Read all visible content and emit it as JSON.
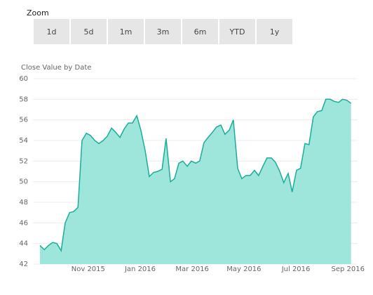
{
  "zoom": {
    "label": "Zoom",
    "buttons": [
      "1d",
      "5d",
      "1m",
      "3m",
      "6m",
      "YTD",
      "1y"
    ]
  },
  "chart_data": {
    "type": "area",
    "title": "Close Value by Date",
    "x": [
      2015.678,
      2015.692,
      2015.705,
      2015.719,
      2015.732,
      2015.746,
      2015.759,
      2015.773,
      2015.786,
      2015.8,
      2015.813,
      2015.827,
      2015.84,
      2015.854,
      2015.867,
      2015.881,
      2015.894,
      2015.908,
      2015.921,
      2015.935,
      2015.948,
      2015.962,
      2015.975,
      2015.989,
      2016.002,
      2016.016,
      2016.029,
      2016.043,
      2016.056,
      2016.07,
      2016.083,
      2016.097,
      2016.11,
      2016.124,
      2016.137,
      2016.151,
      2016.164,
      2016.178,
      2016.191,
      2016.205,
      2016.218,
      2016.232,
      2016.245,
      2016.259,
      2016.272,
      2016.286,
      2016.299,
      2016.313,
      2016.326,
      2016.34,
      2016.353,
      2016.367,
      2016.38,
      2016.394,
      2016.407,
      2016.421,
      2016.434,
      2016.448,
      2016.461,
      2016.475,
      2016.488,
      2016.502,
      2016.515,
      2016.529,
      2016.542,
      2016.556,
      2016.569,
      2016.583,
      2016.596,
      2016.61,
      2016.623,
      2016.637,
      2016.65,
      2016.664,
      2016.677
    ],
    "values": [
      43.8,
      43.4,
      43.8,
      44.1,
      44.0,
      43.3,
      46.0,
      47.0,
      47.1,
      47.5,
      54.0,
      54.7,
      54.5,
      54.0,
      53.7,
      54.0,
      54.4,
      55.2,
      54.8,
      54.3,
      55.1,
      55.7,
      55.7,
      56.4,
      55.0,
      53.0,
      50.5,
      50.9,
      51.0,
      51.2,
      54.2,
      50.0,
      50.3,
      51.8,
      52.0,
      51.5,
      52.0,
      51.8,
      52.0,
      53.8,
      54.3,
      54.8,
      55.3,
      55.5,
      54.6,
      55.0,
      56.0,
      51.3,
      50.3,
      50.6,
      50.6,
      51.1,
      50.6,
      51.5,
      52.3,
      52.3,
      51.9,
      51.0,
      49.9,
      50.8,
      49.0,
      51.1,
      51.3,
      53.7,
      53.6,
      56.3,
      56.8,
      56.9,
      58.0,
      58.0,
      57.8,
      57.7,
      58.0,
      57.9,
      57.6
    ],
    "color": "#1aad9a",
    "fill": "#9ee6dc",
    "xlim": [
      2015.678,
      2016.68
    ],
    "xticks": [
      {
        "value": 2015.833,
        "label": "Nov 2015"
      },
      {
        "value": 2016.0,
        "label": "Jan 2016"
      },
      {
        "value": 2016.167,
        "label": "Mar 2016"
      },
      {
        "value": 2016.333,
        "label": "May 2016"
      },
      {
        "value": 2016.5,
        "label": "Jul 2016"
      },
      {
        "value": 2016.667,
        "label": "Sep 2016"
      }
    ],
    "ylim": [
      42,
      60
    ],
    "yticks": [
      42,
      44,
      46,
      48,
      50,
      52,
      54,
      56,
      58,
      60
    ],
    "grid": true
  }
}
